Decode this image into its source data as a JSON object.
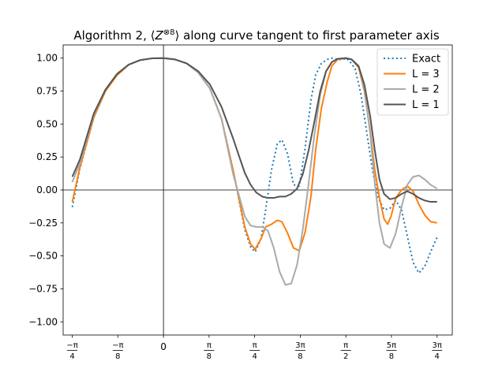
{
  "chart_data": {
    "type": "line",
    "title_parts": {
      "prefix": "Algorithm 2, ⟨",
      "var": "Z",
      "sup": "⊗8",
      "suffix": "⟩ along curve tangent to first parameter axis"
    },
    "xlabel": "",
    "ylabel": "",
    "xlim": [
      -0.8639,
      2.4871
    ],
    "ylim": [
      -1.1,
      1.1
    ],
    "grid": false,
    "legend_position": "top-right",
    "yticks": [
      {
        "value": -1.0,
        "label": "−1.00"
      },
      {
        "value": -0.75,
        "label": "−0.75"
      },
      {
        "value": -0.5,
        "label": "−0.50"
      },
      {
        "value": -0.25,
        "label": "−0.25"
      },
      {
        "value": 0.0,
        "label": "0.00"
      },
      {
        "value": 0.25,
        "label": "0.25"
      },
      {
        "value": 0.5,
        "label": "0.50"
      },
      {
        "value": 0.75,
        "label": "0.75"
      },
      {
        "value": 1.0,
        "label": "1.00"
      }
    ],
    "xticks": [
      {
        "value": -0.7854,
        "num": "−π",
        "den": "4"
      },
      {
        "value": -0.3927,
        "num": "−π",
        "den": "8"
      },
      {
        "value": 0.0,
        "label": "0"
      },
      {
        "value": 0.3927,
        "num": "π",
        "den": "8"
      },
      {
        "value": 0.7854,
        "num": "π",
        "den": "4"
      },
      {
        "value": 1.1781,
        "num": "3π",
        "den": "8"
      },
      {
        "value": 1.5708,
        "num": "π",
        "den": "2"
      },
      {
        "value": 1.9635,
        "num": "5π",
        "den": "8"
      },
      {
        "value": 2.3562,
        "num": "3π",
        "den": "4"
      }
    ],
    "series": [
      {
        "name": "Exact",
        "color": "#1f77b4",
        "style": "dotted",
        "x": [
          -0.785,
          -0.72,
          -0.6,
          -0.5,
          -0.4,
          -0.3,
          -0.2,
          -0.1,
          0.0,
          0.1,
          0.2,
          0.3,
          0.4,
          0.5,
          0.6,
          0.7,
          0.75,
          0.79,
          0.84,
          0.88,
          0.93,
          0.98,
          1.02,
          1.07,
          1.12,
          1.17,
          1.22,
          1.27,
          1.31,
          1.36,
          1.41,
          1.45,
          1.5,
          1.55,
          1.57,
          1.6,
          1.65,
          1.7,
          1.75,
          1.8,
          1.85,
          1.9,
          1.95,
          2.0,
          2.05,
          2.1,
          2.15,
          2.2,
          2.25,
          2.3,
          2.356
        ],
        "y": [
          -0.13,
          0.16,
          0.55,
          0.75,
          0.87,
          0.95,
          0.985,
          0.998,
          1.0,
          0.99,
          0.96,
          0.89,
          0.77,
          0.54,
          0.15,
          -0.3,
          -0.43,
          -0.47,
          -0.37,
          -0.15,
          0.15,
          0.35,
          0.38,
          0.27,
          0.04,
          0.03,
          0.32,
          0.68,
          0.87,
          0.96,
          0.99,
          1.0,
          0.99,
          0.99,
          1.0,
          0.98,
          0.92,
          0.73,
          0.44,
          0.15,
          -0.06,
          -0.15,
          -0.14,
          -0.08,
          -0.15,
          -0.35,
          -0.55,
          -0.63,
          -0.58,
          -0.47,
          -0.36
        ]
      },
      {
        "name": "L = 3",
        "color": "#ff7f0e",
        "style": "solid",
        "x": [
          -0.785,
          -0.72,
          -0.6,
          -0.5,
          -0.4,
          -0.3,
          -0.2,
          -0.1,
          0.0,
          0.1,
          0.2,
          0.3,
          0.4,
          0.5,
          0.6,
          0.7,
          0.75,
          0.79,
          0.84,
          0.88,
          0.93,
          0.98,
          1.02,
          1.07,
          1.12,
          1.17,
          1.22,
          1.27,
          1.31,
          1.36,
          1.41,
          1.45,
          1.5,
          1.57,
          1.62,
          1.68,
          1.73,
          1.78,
          1.82,
          1.86,
          1.9,
          1.93,
          1.96,
          2.0,
          2.05,
          2.1,
          2.15,
          2.2,
          2.25,
          2.3,
          2.356
        ],
        "y": [
          -0.09,
          0.17,
          0.55,
          0.75,
          0.87,
          0.95,
          0.985,
          0.998,
          1.0,
          0.99,
          0.96,
          0.89,
          0.77,
          0.54,
          0.15,
          -0.28,
          -0.41,
          -0.45,
          -0.37,
          -0.28,
          -0.26,
          -0.23,
          -0.24,
          -0.33,
          -0.44,
          -0.46,
          -0.32,
          -0.05,
          0.3,
          0.62,
          0.82,
          0.94,
          0.99,
          1.0,
          0.99,
          0.93,
          0.75,
          0.45,
          0.15,
          -0.06,
          -0.22,
          -0.26,
          -0.2,
          -0.06,
          0.0,
          0.03,
          -0.01,
          -0.11,
          -0.19,
          -0.24,
          -0.25
        ]
      },
      {
        "name": "L = 2",
        "color": "#aaaaaa",
        "style": "solid",
        "x": [
          -0.785,
          -0.72,
          -0.6,
          -0.5,
          -0.4,
          -0.3,
          -0.2,
          -0.1,
          0.0,
          0.1,
          0.2,
          0.3,
          0.4,
          0.5,
          0.6,
          0.7,
          0.75,
          0.8,
          0.85,
          0.9,
          0.95,
          1.0,
          1.05,
          1.1,
          1.15,
          1.2,
          1.25,
          1.3,
          1.35,
          1.4,
          1.45,
          1.5,
          1.57,
          1.62,
          1.68,
          1.73,
          1.78,
          1.82,
          1.86,
          1.9,
          1.95,
          2.0,
          2.05,
          2.1,
          2.15,
          2.2,
          2.25,
          2.3,
          2.356
        ],
        "y": [
          0.06,
          0.2,
          0.57,
          0.76,
          0.88,
          0.95,
          0.985,
          0.998,
          1.0,
          0.99,
          0.96,
          0.89,
          0.77,
          0.54,
          0.12,
          -0.2,
          -0.27,
          -0.28,
          -0.28,
          -0.31,
          -0.44,
          -0.62,
          -0.72,
          -0.71,
          -0.57,
          -0.3,
          0.05,
          0.42,
          0.72,
          0.9,
          0.97,
          0.995,
          1.0,
          0.99,
          0.94,
          0.77,
          0.43,
          0.05,
          -0.25,
          -0.41,
          -0.44,
          -0.33,
          -0.13,
          0.04,
          0.1,
          0.11,
          0.08,
          0.04,
          0.01
        ]
      },
      {
        "name": "L = 1",
        "color": "#555555",
        "style": "solid",
        "x": [
          -0.785,
          -0.72,
          -0.6,
          -0.5,
          -0.4,
          -0.3,
          -0.2,
          -0.1,
          0.0,
          0.1,
          0.2,
          0.3,
          0.4,
          0.5,
          0.6,
          0.7,
          0.75,
          0.8,
          0.85,
          0.9,
          0.95,
          1.0,
          1.05,
          1.1,
          1.15,
          1.2,
          1.25,
          1.3,
          1.35,
          1.4,
          1.45,
          1.5,
          1.57,
          1.62,
          1.68,
          1.73,
          1.78,
          1.82,
          1.86,
          1.9,
          1.95,
          2.0,
          2.05,
          2.1,
          2.15,
          2.2,
          2.25,
          2.3,
          2.356
        ],
        "y": [
          0.1,
          0.23,
          0.58,
          0.76,
          0.88,
          0.95,
          0.985,
          0.998,
          1.0,
          0.99,
          0.96,
          0.9,
          0.8,
          0.63,
          0.39,
          0.13,
          0.04,
          -0.02,
          -0.05,
          -0.06,
          -0.06,
          -0.05,
          -0.05,
          -0.03,
          0.01,
          0.12,
          0.3,
          0.52,
          0.75,
          0.9,
          0.97,
          0.995,
          1.0,
          0.99,
          0.94,
          0.8,
          0.56,
          0.3,
          0.08,
          -0.03,
          -0.07,
          -0.06,
          -0.03,
          -0.01,
          -0.03,
          -0.06,
          -0.08,
          -0.09,
          -0.09
        ]
      }
    ]
  }
}
